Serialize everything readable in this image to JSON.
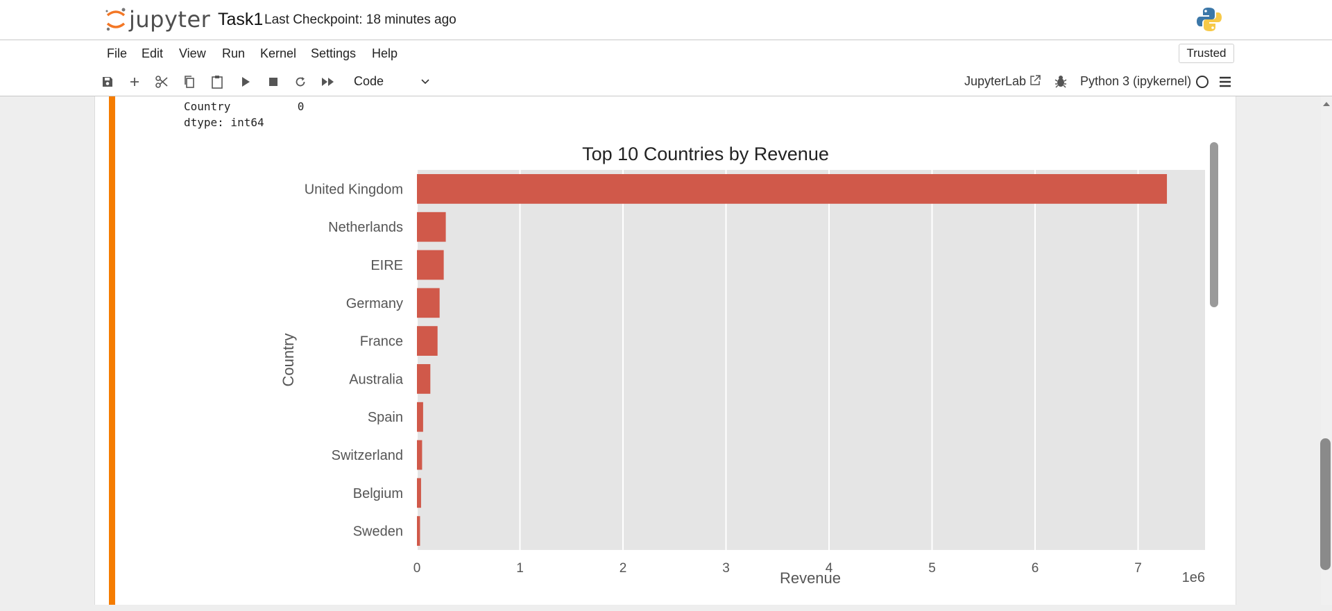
{
  "app": {
    "logo_text": "jupyter",
    "notebook_title": "Task1",
    "checkpoint": "Last Checkpoint: 18 minutes ago"
  },
  "menu": [
    "File",
    "Edit",
    "View",
    "Run",
    "Kernel",
    "Settings",
    "Help"
  ],
  "trusted_label": "Trusted",
  "toolbar": {
    "cell_type": "Code",
    "jupyterlab_label": "JupyterLab",
    "kernel_name": "Python 3 (ipykernel)"
  },
  "output": {
    "line1": "Country          0",
    "line2": "dtype: int64"
  },
  "colors": {
    "accent": "#f57c00",
    "bar": "#d0594a",
    "plot_bg": "#e5e5e5"
  },
  "chart_data": {
    "type": "bar",
    "orientation": "horizontal",
    "title": "Top 10 Countries by Revenue",
    "xlabel": "Revenue",
    "ylabel": "Country",
    "x_scale_label": "1e6",
    "categories": [
      "United Kingdom",
      "Netherlands",
      "EIRE",
      "Germany",
      "France",
      "Australia",
      "Spain",
      "Switzerland",
      "Belgium",
      "Sweden"
    ],
    "values": [
      7.28,
      0.28,
      0.26,
      0.22,
      0.2,
      0.13,
      0.06,
      0.05,
      0.04,
      0.03
    ],
    "xlim": [
      0,
      7.65
    ],
    "xticks": [
      "0",
      "1",
      "2",
      "3",
      "4",
      "5",
      "6",
      "7"
    ],
    "grid": true
  }
}
